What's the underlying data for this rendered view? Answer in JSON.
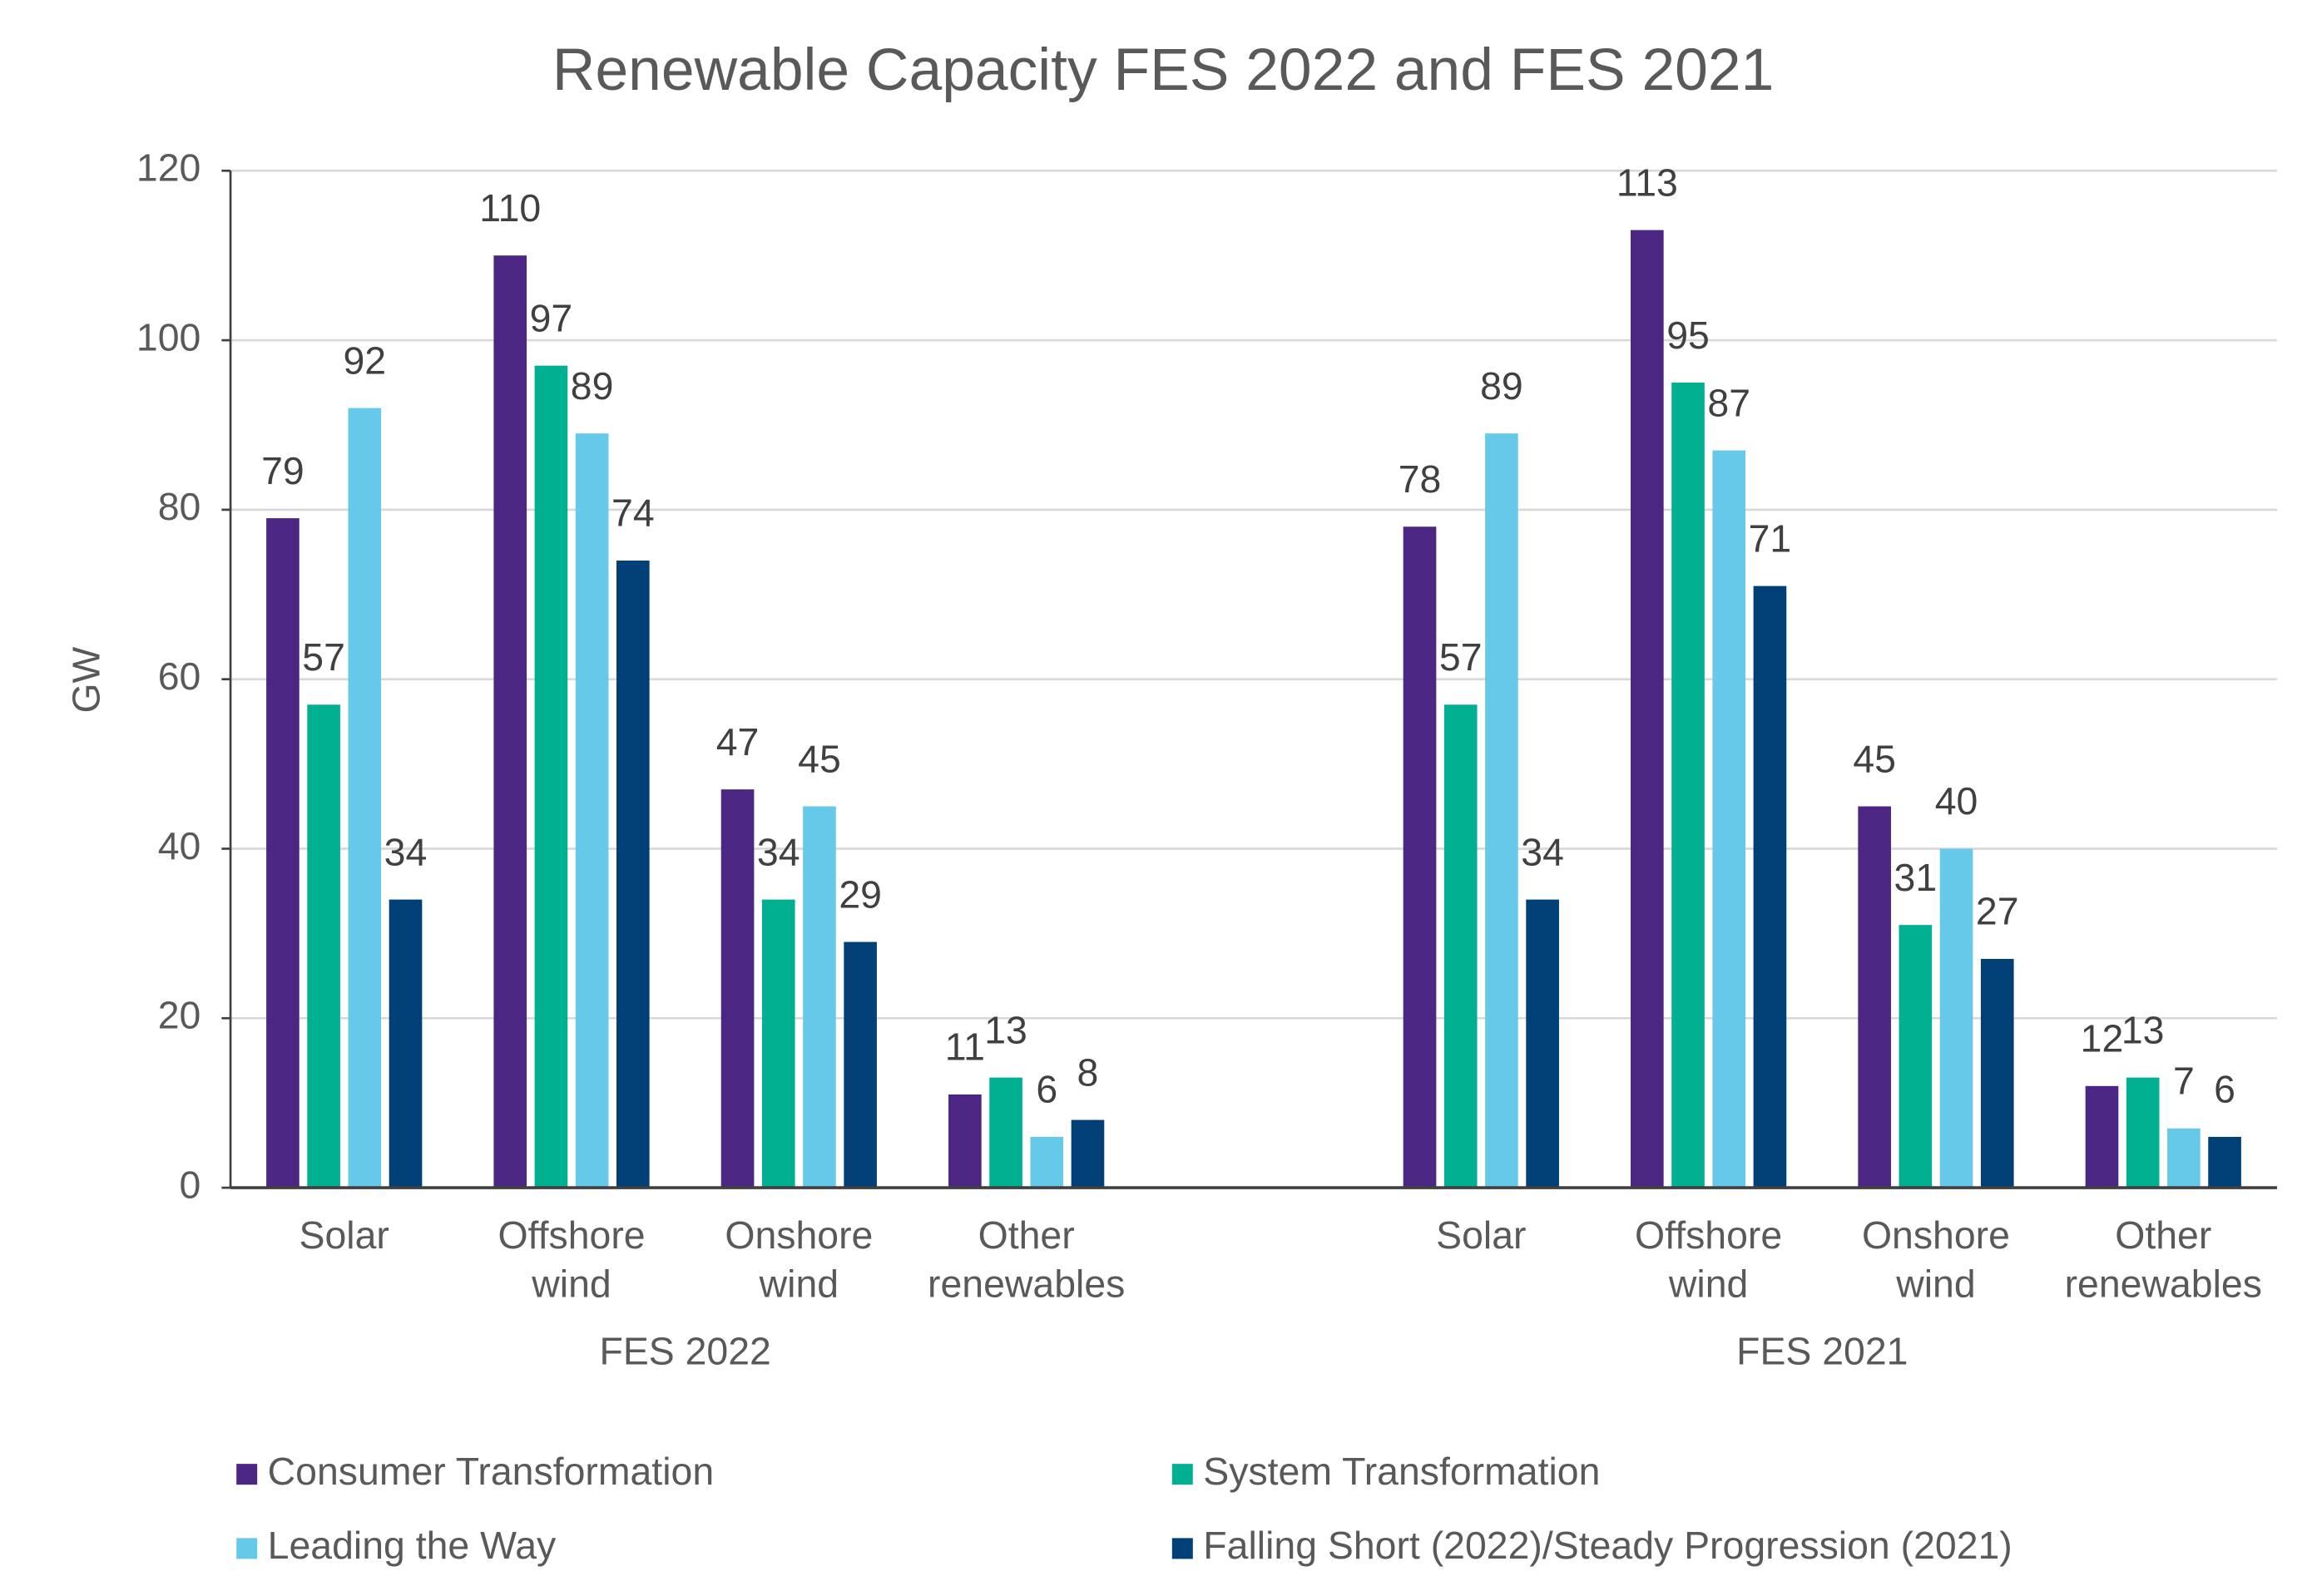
{
  "chart_data": {
    "type": "bar",
    "title": "Renewable Capacity FES 2022 and FES 2021",
    "y_label": "GW",
    "groups": [
      "FES 2022",
      "FES 2021"
    ],
    "categories": [
      "Solar",
      "Offshore wind",
      "Onshore wind",
      "Other renewables",
      "Solar",
      "Offshore wind",
      "Onshore wind",
      "Other renewables"
    ],
    "series": [
      {
        "name": "Consumer Transformation",
        "color": "#4b2683",
        "values": [
          79,
          110,
          47,
          11,
          78,
          113,
          45,
          12
        ]
      },
      {
        "name": "System Transformation",
        "color": "#00b091",
        "values": [
          57,
          97,
          34,
          13,
          57,
          95,
          31,
          13
        ]
      },
      {
        "name": "Leading the Way",
        "color": "#66c9e9",
        "values": [
          92,
          89,
          45,
          6,
          89,
          87,
          40,
          7
        ]
      },
      {
        "name": "Falling Short (2022)/Steady Progression (2021)",
        "color": "#004077",
        "values": [
          34,
          74,
          29,
          8,
          34,
          71,
          27,
          6
        ]
      }
    ],
    "ylim": [
      0,
      120
    ],
    "yticks": [
      0,
      20,
      40,
      60,
      80,
      100,
      120
    ],
    "grid": true
  }
}
